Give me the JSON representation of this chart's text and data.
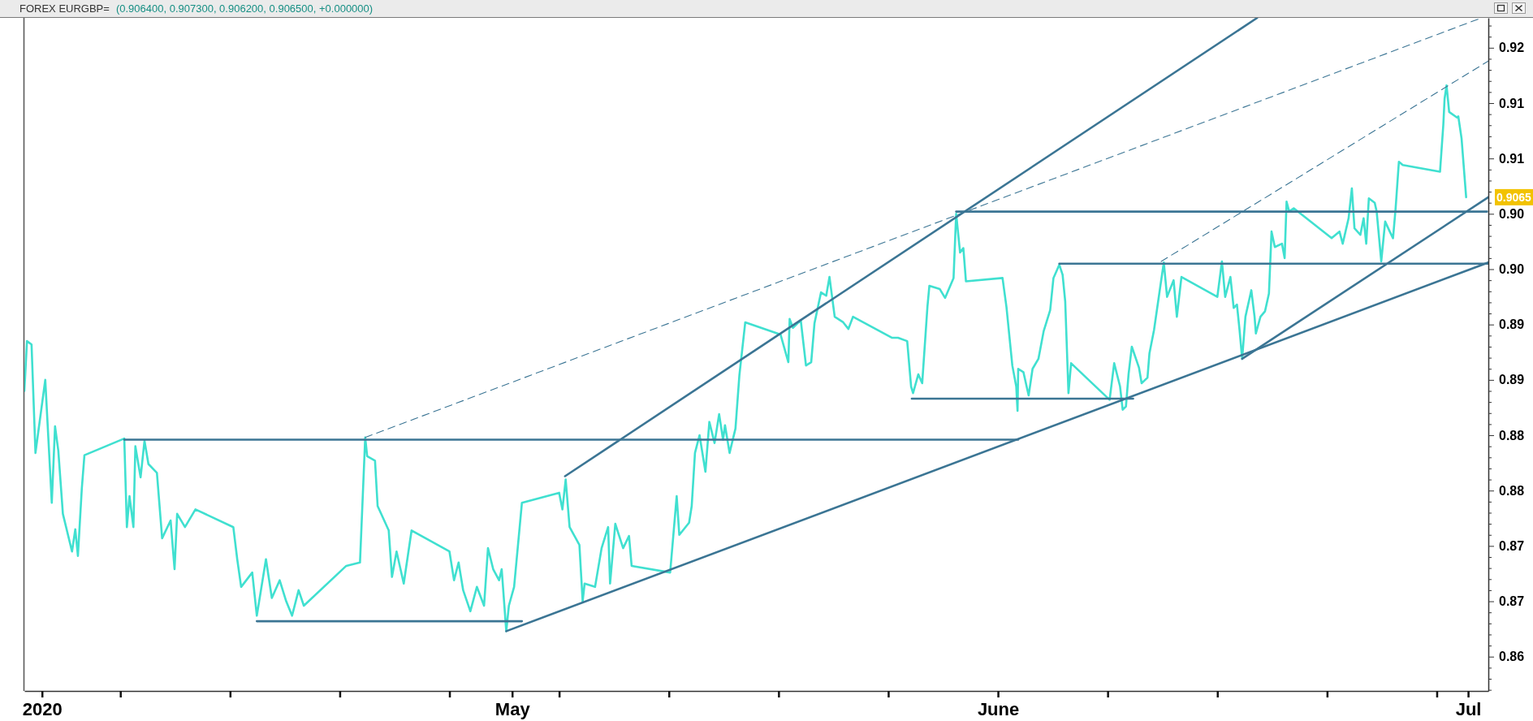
{
  "chart_data": {
    "type": "line",
    "title": "FOREX EURGBP=",
    "subtitle": "(0.906400, 0.907300, 0.906200, 0.906500, +0.000000)",
    "xlim": [
      "2020-03-30T21:00",
      "2020-07-02T07:00"
    ],
    "ylim": [
      0.8619,
      0.9227
    ],
    "xticks": [
      {
        "value": "2020-04-01",
        "label": "2020"
      },
      {
        "value": "2020-04-06",
        "label": null
      },
      {
        "value": "2020-04-13",
        "label": null
      },
      {
        "value": "2020-04-20",
        "label": null
      },
      {
        "value": "2020-04-27",
        "label": null
      },
      {
        "value": "2020-05-01",
        "label": "May"
      },
      {
        "value": "2020-05-04",
        "label": null
      },
      {
        "value": "2020-05-11",
        "label": null
      },
      {
        "value": "2020-05-18",
        "label": null
      },
      {
        "value": "2020-05-25",
        "label": null
      },
      {
        "value": "2020-06-01",
        "label": "June"
      },
      {
        "value": "2020-06-08",
        "label": null
      },
      {
        "value": "2020-06-15",
        "label": null
      },
      {
        "value": "2020-06-22",
        "label": null
      },
      {
        "value": "2020-06-29",
        "label": null
      },
      {
        "value": "2020-07-01",
        "label": "Jul"
      }
    ],
    "yticks": [
      {
        "value": 0.862,
        "label": null
      },
      {
        "value": 0.863,
        "label": null
      },
      {
        "value": 0.864,
        "label": null
      },
      {
        "value": 0.865,
        "label": "0.86"
      },
      {
        "value": 0.866,
        "label": null
      },
      {
        "value": 0.867,
        "label": null
      },
      {
        "value": 0.868,
        "label": null
      },
      {
        "value": 0.869,
        "label": null
      },
      0.87,
      {
        "value": 0.871,
        "label": null
      },
      {
        "value": 0.872,
        "label": null
      },
      {
        "value": 0.873,
        "label": null
      },
      {
        "value": 0.874,
        "label": null
      },
      {
        "value": 0.875,
        "label": "0.87"
      },
      {
        "value": 0.876,
        "label": null
      },
      {
        "value": 0.877,
        "label": null
      },
      {
        "value": 0.878,
        "label": null
      },
      {
        "value": 0.879,
        "label": null
      },
      0.88,
      {
        "value": 0.881,
        "label": null
      },
      {
        "value": 0.882,
        "label": null
      },
      {
        "value": 0.883,
        "label": null
      },
      {
        "value": 0.884,
        "label": null
      },
      {
        "value": 0.885,
        "label": "0.88"
      },
      {
        "value": 0.886,
        "label": null
      },
      {
        "value": 0.887,
        "label": null
      },
      {
        "value": 0.888,
        "label": null
      },
      {
        "value": 0.889,
        "label": null
      },
      0.89,
      {
        "value": 0.891,
        "label": null
      },
      {
        "value": 0.892,
        "label": null
      },
      {
        "value": 0.893,
        "label": null
      },
      {
        "value": 0.894,
        "label": null
      },
      {
        "value": 0.895,
        "label": "0.89"
      },
      {
        "value": 0.896,
        "label": null
      },
      {
        "value": 0.897,
        "label": null
      },
      {
        "value": 0.898,
        "label": null
      },
      {
        "value": 0.899,
        "label": null
      },
      {
        "value": 0.9,
        "label": "0.90"
      },
      {
        "value": 0.901,
        "label": null
      },
      {
        "value": 0.902,
        "label": null
      },
      {
        "value": 0.903,
        "label": null
      },
      {
        "value": 0.904,
        "label": null
      },
      {
        "value": 0.905,
        "label": "0.90"
      },
      {
        "value": 0.906,
        "label": null
      },
      {
        "value": 0.907,
        "label": null
      },
      {
        "value": 0.908,
        "label": null
      },
      {
        "value": 0.909,
        "label": null
      },
      0.91,
      {
        "value": 0.911,
        "label": null
      },
      {
        "value": 0.912,
        "label": null
      },
      {
        "value": 0.913,
        "label": null
      },
      {
        "value": 0.914,
        "label": null
      },
      {
        "value": 0.915,
        "label": "0.91"
      },
      {
        "value": 0.916,
        "label": null
      },
      {
        "value": 0.917,
        "label": null
      },
      {
        "value": 0.918,
        "label": null
      },
      {
        "value": 0.919,
        "label": null
      },
      0.92,
      {
        "value": 0.921,
        "label": null
      },
      {
        "value": 0.922,
        "label": null
      }
    ],
    "line_style": "solid",
    "annotations": [
      "0.9065"
    ],
    "series": [
      {
        "color": "#40e0d0",
        "x": [
          "2020-03-30T21:00",
          "2020-03-31T01:00",
          "2020-03-31T08:00",
          "2020-03-31T14:00",
          "2020-04-01T05:00",
          "2020-04-01T15:00",
          "2020-04-01T20:00",
          "2020-04-02T01:00",
          "2020-04-02T08:00",
          "2020-04-02T22:00",
          "2020-04-03T03:00",
          "2020-04-03T07:00",
          "2020-04-03T13:00",
          "2020-04-03T17:00",
          "2020-04-06T06:00",
          "2020-04-06T10:00",
          "2020-04-06T14:00",
          "2020-04-06T20:00",
          "2020-04-06T23:00",
          "2020-04-07T07:00",
          "2020-04-07T13:00",
          "2020-04-07T19:00",
          "2020-04-08T08:00",
          "2020-04-08T16:00",
          "2020-04-09T05:00",
          "2020-04-09T11:00",
          "2020-04-09T15:00",
          "2020-04-10T03:00",
          "2020-04-10T19:00",
          "2020-04-13T05:00",
          "2020-04-13T11:00",
          "2020-04-13T17:00",
          "2020-04-14T10:00",
          "2020-04-14T17:00",
          "2020-04-15T07:00",
          "2020-04-15T16:00",
          "2020-04-16T04:00",
          "2020-04-16T14:00",
          "2020-04-16T23:00",
          "2020-04-17T09:00",
          "2020-04-17T17:00",
          "2020-04-20T10:00",
          "2020-04-21T07:00",
          "2020-04-21T15:00",
          "2020-04-21T18:00",
          "2020-04-22T06:00",
          "2020-04-22T10:00",
          "2020-04-23T03:00",
          "2020-04-23T08:00",
          "2020-04-23T15:00",
          "2020-04-24T02:00",
          "2020-04-24T14:00",
          "2020-04-27T00:00",
          "2020-04-27T07:00",
          "2020-04-27T14:00",
          "2020-04-27T21:00",
          "2020-04-28T08:00",
          "2020-04-28T18:00",
          "2020-04-29T05:00",
          "2020-04-29T11:00",
          "2020-04-29T19:00",
          "2020-04-30T04:00",
          "2020-04-30T08:00",
          "2020-04-30T15:00",
          "2020-04-30T19:00",
          "2020-05-01T03:00",
          "2020-05-01T15:00",
          "2020-05-04T00:00",
          "2020-05-04T05:00",
          "2020-05-04T10:00",
          "2020-05-04T16:00",
          "2020-05-05T07:00",
          "2020-05-05T12:00",
          "2020-05-05T15:00",
          "2020-05-06T07:00",
          "2020-05-06T17:00",
          "2020-05-07T03:00",
          "2020-05-07T06:00",
          "2020-05-07T14:00",
          "2020-05-08T02:00",
          "2020-05-08T11:00",
          "2020-05-08T15:00",
          "2020-05-11T02:00",
          "2020-05-11T12:00",
          "2020-05-11T16:00",
          "2020-05-12T07:00",
          "2020-05-12T11:00",
          "2020-05-12T16:00",
          "2020-05-12T23:00",
          "2020-05-13T08:00",
          "2020-05-13T14:00",
          "2020-05-13T22:00",
          "2020-05-14T05:00",
          "2020-05-14T11:00",
          "2020-05-14T14:00",
          "2020-05-14T21:00",
          "2020-05-15T06:00",
          "2020-05-15T12:00",
          "2020-05-15T21:00",
          "2020-05-18T03:00",
          "2020-05-18T15:00",
          "2020-05-18T17:00",
          "2020-05-18T22:00",
          "2020-05-19T10:00",
          "2020-05-19T18:00",
          "2020-05-20T02:00",
          "2020-05-20T07:00",
          "2020-05-20T17:00",
          "2020-05-21T01:00",
          "2020-05-21T06:00",
          "2020-05-21T14:00",
          "2020-05-22T03:00",
          "2020-05-22T11:00",
          "2020-05-22T18:00",
          "2020-05-25T06:00",
          "2020-05-25T15:00",
          "2020-05-26T05:00",
          "2020-05-26T11:00",
          "2020-05-26T14:00",
          "2020-05-26T22:00",
          "2020-05-27T04:00",
          "2020-05-27T12:00",
          "2020-05-27T15:00",
          "2020-05-28T07:00",
          "2020-05-28T15:00",
          "2020-05-29T04:00",
          "2020-05-29T08:00",
          "2020-05-29T14:00",
          "2020-05-29T19:00",
          "2020-05-29T23:00",
          "2020-06-01T07:00",
          "2020-06-01T13:00",
          "2020-06-01T22:00",
          "2020-06-02T04:00",
          "2020-06-02T06:00",
          "2020-06-02T07:00",
          "2020-06-02T15:00",
          "2020-06-02T23:00",
          "2020-06-03T05:00",
          "2020-06-03T14:00",
          "2020-06-03T22:00",
          "2020-06-04T08:00",
          "2020-06-04T13:00",
          "2020-06-04T22:00",
          "2020-06-05T03:00",
          "2020-06-05T07:00",
          "2020-06-05T12:00",
          "2020-06-05T16:00",
          "2020-06-08T03:00",
          "2020-06-08T10:00",
          "2020-06-08T19:00",
          "2020-06-08T23:00",
          "2020-06-09T04:00",
          "2020-06-09T08:00",
          "2020-06-09T13:00",
          "2020-06-10T00:00",
          "2020-06-10T04:00",
          "2020-06-10T13:00",
          "2020-06-10T16:00",
          "2020-06-10T23:00",
          "2020-06-11T10:00",
          "2020-06-11T14:00",
          "2020-06-11T19:00",
          "2020-06-12T05:00",
          "2020-06-12T10:00",
          "2020-06-12T17:00",
          "2020-06-15T00:00",
          "2020-06-15T07:00",
          "2020-06-15T12:00",
          "2020-06-15T20:00",
          "2020-06-16T01:00",
          "2020-06-16T06:00",
          "2020-06-16T10:00",
          "2020-06-16T14:00",
          "2020-06-16T19:00",
          "2020-06-17T04:00",
          "2020-06-17T09:00",
          "2020-06-17T11:00",
          "2020-06-17T18:00",
          "2020-06-18T01:00",
          "2020-06-18T07:00",
          "2020-06-18T11:00",
          "2020-06-18T16:00",
          "2020-06-19T03:00",
          "2020-06-19T07:00",
          "2020-06-19T10:00",
          "2020-06-19T14:00",
          "2020-06-19T21:00",
          "2020-06-22T07:00",
          "2020-06-22T19:00",
          "2020-06-23T00:00",
          "2020-06-23T09:00",
          "2020-06-23T14:00",
          "2020-06-23T18:00",
          "2020-06-24T03:00",
          "2020-06-24T08:00",
          "2020-06-24T12:00",
          "2020-06-24T16:00",
          "2020-06-25T01:00",
          "2020-06-25T04:00",
          "2020-06-25T11:00",
          "2020-06-25T17:00",
          "2020-06-26T00:00",
          "2020-06-26T05:00",
          "2020-06-26T09:00",
          "2020-06-26T14:00",
          "2020-06-26T20:00",
          "2020-06-29T05:00",
          "2020-06-29T10:00",
          "2020-06-29T12:00",
          "2020-06-29T15:00",
          "2020-06-29T19:00",
          "2020-06-30T07:00",
          "2020-06-30T09:00",
          "2020-06-30T14:00",
          "2020-06-30T21:00"
        ],
        "values": [
          0.889,
          0.8935,
          0.8932,
          0.8834,
          0.89,
          0.8789,
          0.8858,
          0.8836,
          0.8779,
          0.8745,
          0.8765,
          0.8741,
          0.8802,
          0.8832,
          0.8847,
          0.8767,
          0.8795,
          0.8767,
          0.884,
          0.8812,
          0.8845,
          0.8824,
          0.8816,
          0.8757,
          0.8773,
          0.8729,
          0.8779,
          0.8767,
          0.8783,
          0.8767,
          0.8738,
          0.8713,
          0.8726,
          0.8687,
          0.8738,
          0.8703,
          0.8719,
          0.87,
          0.8687,
          0.871,
          0.8696,
          0.8732,
          0.8735,
          0.8848,
          0.8831,
          0.8827,
          0.8786,
          0.8764,
          0.8722,
          0.8745,
          0.8716,
          0.8764,
          0.8745,
          0.8719,
          0.8735,
          0.871,
          0.8691,
          0.8713,
          0.8696,
          0.8748,
          0.8729,
          0.8719,
          0.8729,
          0.8673,
          0.8696,
          0.8713,
          0.8789,
          0.8798,
          0.8783,
          0.881,
          0.8767,
          0.8751,
          0.87,
          0.8716,
          0.8713,
          0.8748,
          0.8767,
          0.8716,
          0.877,
          0.8748,
          0.8759,
          0.8732,
          0.8726,
          0.8795,
          0.876,
          0.8771,
          0.8786,
          0.8834,
          0.885,
          0.8817,
          0.8862,
          0.8843,
          0.8869,
          0.8846,
          0.8859,
          0.8834,
          0.8856,
          0.8904,
          0.8952,
          0.8941,
          0.8916,
          0.8955,
          0.8947,
          0.8954,
          0.8913,
          0.8916,
          0.8951,
          0.8979,
          0.8976,
          0.8993,
          0.8957,
          0.8952,
          0.8946,
          0.8957,
          0.8938,
          0.8938,
          0.8935,
          0.8894,
          0.8888,
          0.8905,
          0.8897,
          0.8966,
          0.8985,
          0.8982,
          0.8974,
          0.8992,
          0.905,
          0.9015,
          0.9019,
          0.8989,
          0.8992,
          0.8966,
          0.8913,
          0.8894,
          0.8872,
          0.891,
          0.8907,
          0.8886,
          0.891,
          0.8919,
          0.8944,
          0.8963,
          0.8992,
          0.9004,
          0.8995,
          0.8971,
          0.8888,
          0.8915,
          0.8882,
          0.8915,
          0.8894,
          0.8873,
          0.8876,
          0.8905,
          0.893,
          0.8911,
          0.8897,
          0.8902,
          0.8924,
          0.8945,
          0.899,
          0.9006,
          0.8975,
          0.899,
          0.8957,
          0.8993,
          0.8975,
          0.9007,
          0.8975,
          0.8993,
          0.8965,
          0.8968,
          0.8945,
          0.8919,
          0.8957,
          0.8981,
          0.8957,
          0.8942,
          0.8957,
          0.8962,
          0.8978,
          0.9034,
          0.902,
          0.9023,
          0.901,
          0.9061,
          0.9052,
          0.9055,
          0.9028,
          0.9034,
          0.9023,
          0.9046,
          0.9073,
          0.9037,
          0.9031,
          0.9046,
          0.9023,
          0.9064,
          0.906,
          0.9052,
          0.9007,
          0.9043,
          0.9034,
          0.9028,
          0.9055,
          0.9097,
          0.9094,
          0.9088,
          0.913,
          0.9154,
          0.9166,
          0.9142,
          0.9137,
          0.9138,
          0.9118,
          0.9065
        ]
      },
      {
        "color": "#3b7594",
        "x": [
          "2020-04-06T06:00",
          "2020-06-02T07:00"
        ],
        "values": [
          0.8846,
          0.8846
        ]
      },
      {
        "color": "#3b7594",
        "x": [
          "2020-04-14T17:00",
          "2020-05-01T15:00"
        ],
        "values": [
          0.8682,
          0.8682
        ]
      },
      {
        "color": "#3b7594",
        "x": [
          "2020-04-30T15:00",
          "2020-07-02T07:00"
        ],
        "values": [
          0.8673,
          0.9006
        ]
      },
      {
        "color": "#3b7594",
        "x": [
          "2020-05-04T09:00",
          "2020-06-17T13:00"
        ],
        "values": [
          0.8813,
          0.9227
        ]
      },
      {
        "color": "#3b7594",
        "x": [
          "2020-05-29T08:00",
          "2020-07-02T05:00"
        ],
        "values": [
          0.9052,
          0.9052
        ]
      },
      {
        "color": "#3b7594",
        "x": [
          "2020-06-04T22:00",
          "2020-07-02T07:00"
        ],
        "values": [
          0.9005,
          0.9005
        ]
      },
      {
        "color": "#3b7594",
        "x": [
          "2020-05-26T12:00",
          "2020-06-09T15:00"
        ],
        "values": [
          0.8883,
          0.8883
        ]
      },
      {
        "color": "#3b7594",
        "x": [
          "2020-06-16T14:00",
          "2020-07-02T07:00"
        ],
        "values": [
          0.8919,
          0.9065
        ]
      },
      {
        "color": "#3b7594",
        "line_style": "dashed",
        "x": [
          "2020-04-21T15:00",
          "2020-07-01T16:00"
        ],
        "values": [
          0.8848,
          0.9226
        ]
      },
      {
        "color": "#3b7594",
        "line_style": "dashed",
        "x": [
          "2020-06-11T10:00",
          "2020-07-02T07:00"
        ],
        "values": [
          0.9007,
          0.9188
        ]
      }
    ]
  }
}
